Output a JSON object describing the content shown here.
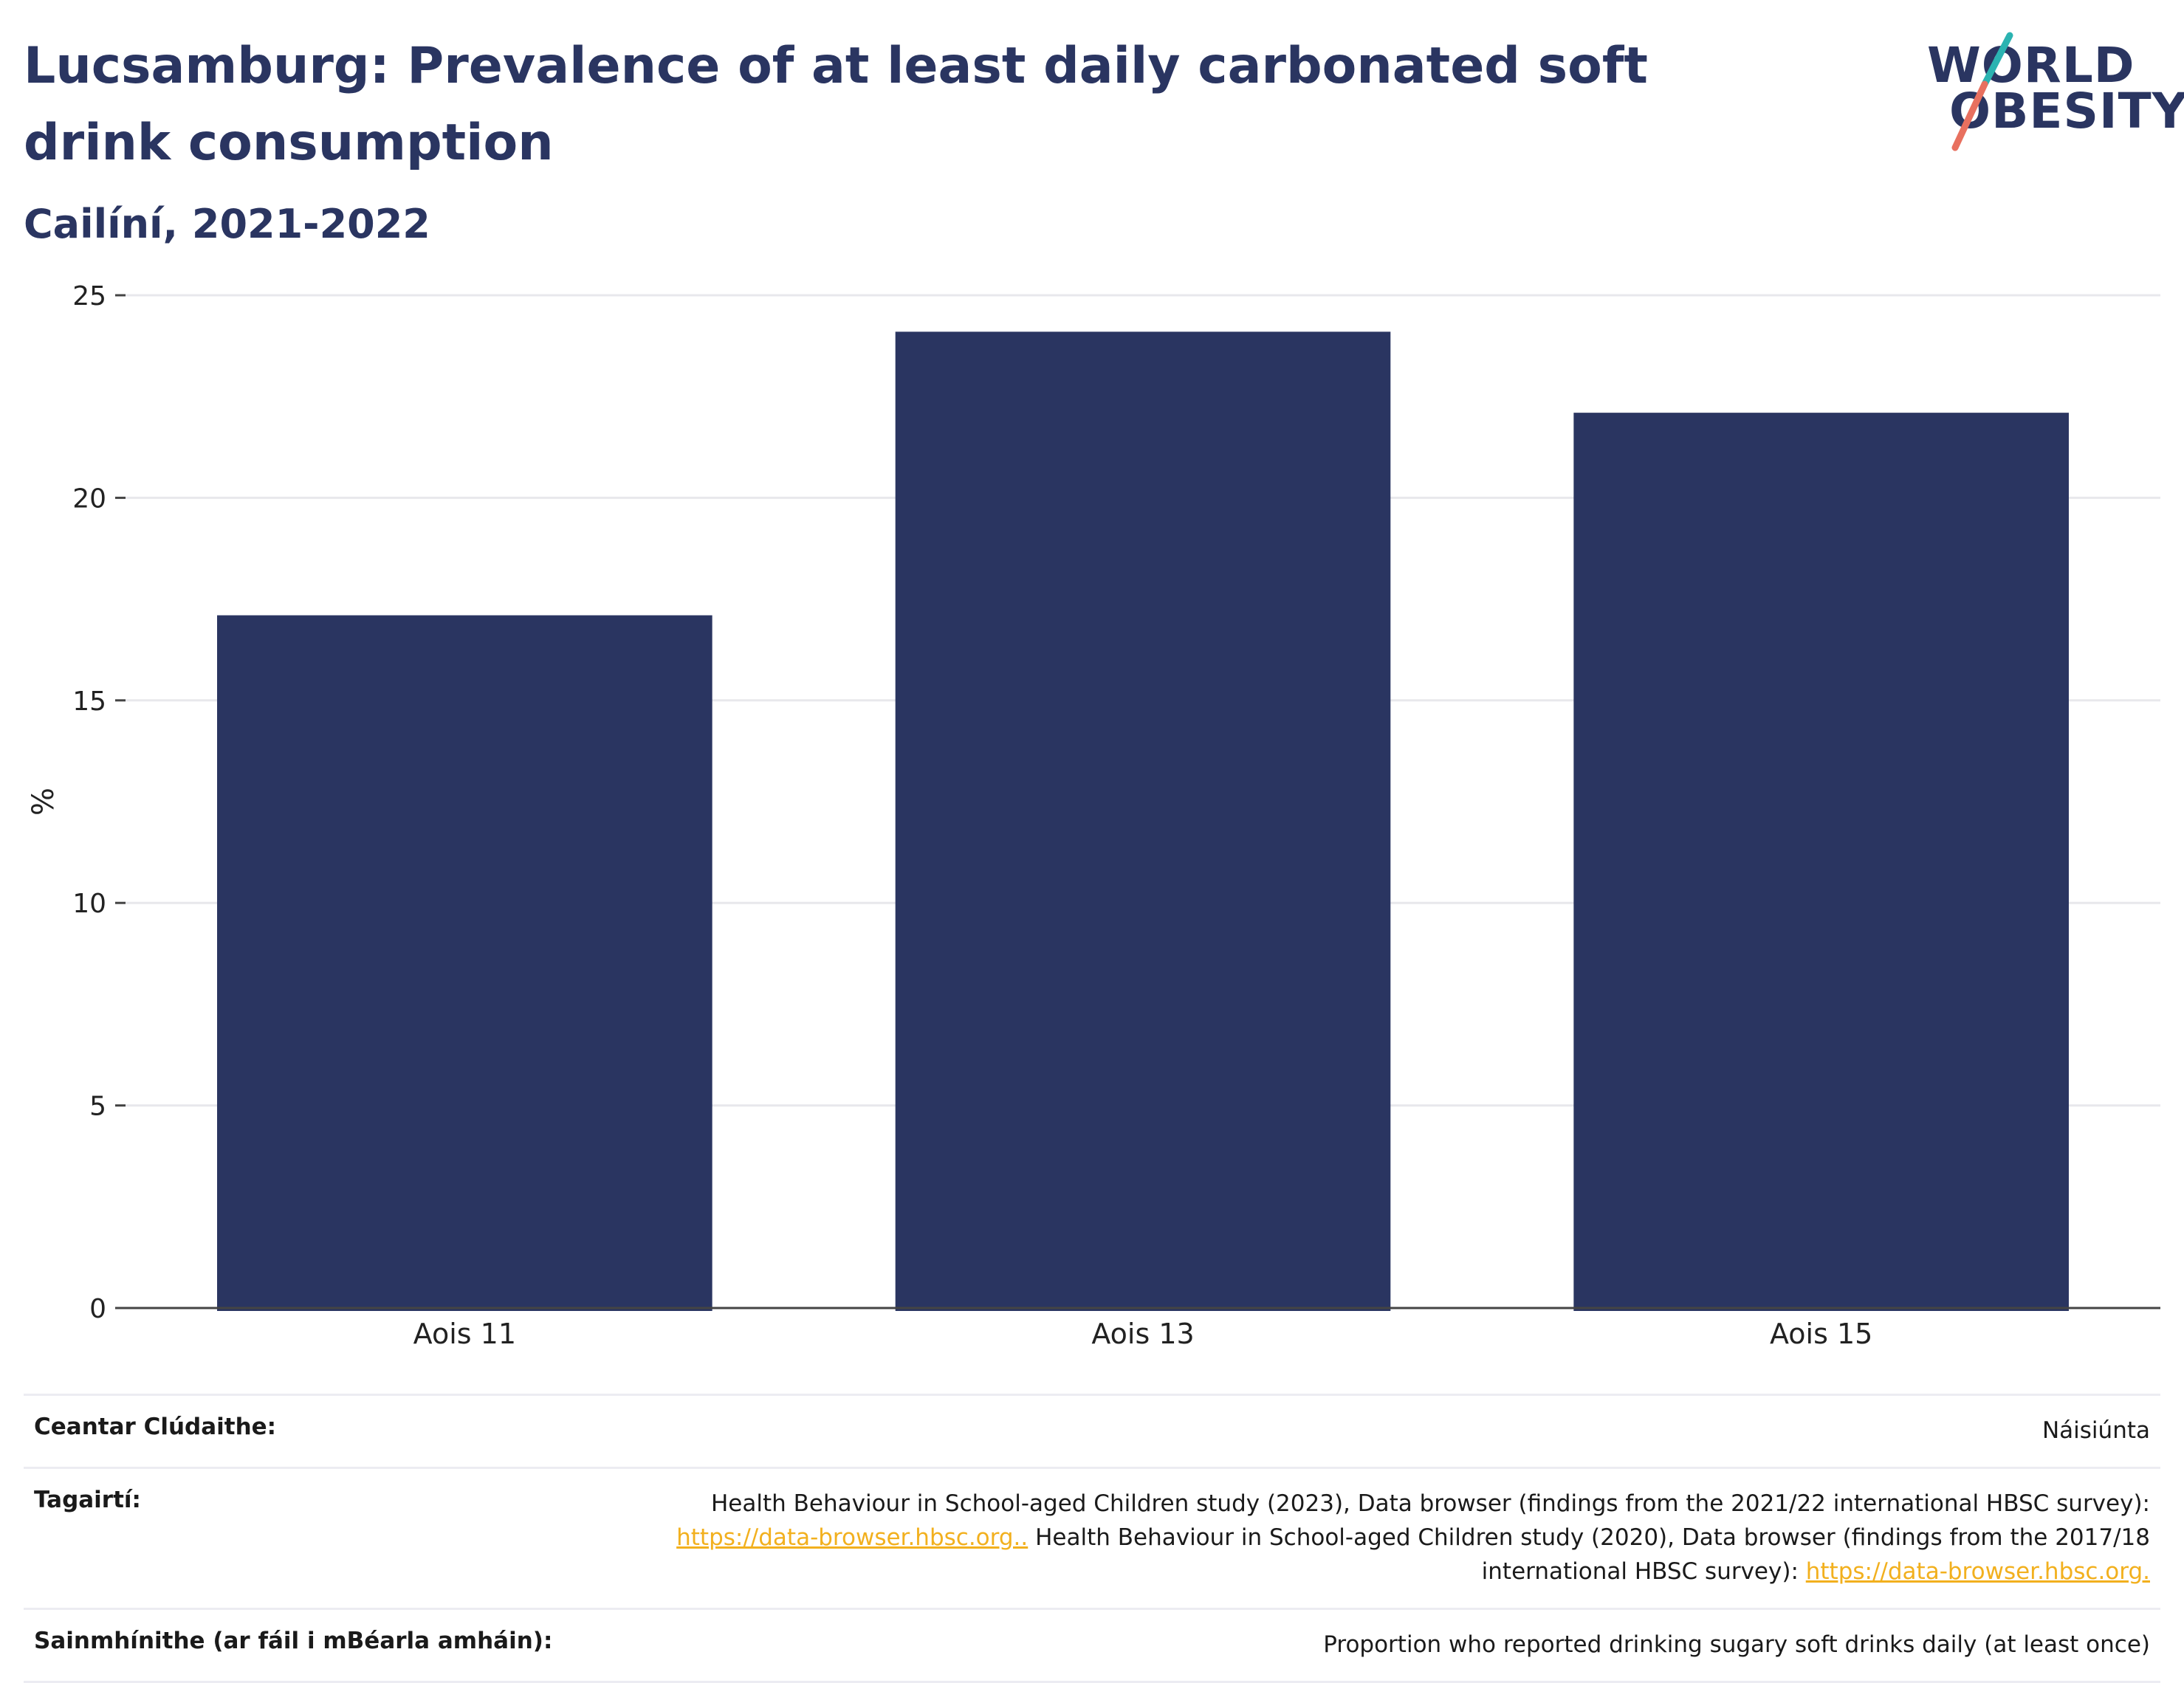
{
  "header": {
    "title": "Lucsamburg: Prevalence of at least daily carbonated soft drink consumption",
    "subtitle": "Cailíní, 2021-2022"
  },
  "logo": {
    "line1": "WORLD",
    "line2": "OBESITY",
    "colors": {
      "text": "#2a3561",
      "slash_top": "#2bb3b1",
      "slash_bottom": "#e8705f"
    }
  },
  "chart_data": {
    "type": "bar",
    "categories": [
      "Aois 11",
      "Aois 13",
      "Aois 15"
    ],
    "values": [
      17.1,
      24.1,
      22.1
    ],
    "ylabel": "%",
    "ylim": [
      0,
      25
    ],
    "yticks": [
      0,
      5,
      10,
      15,
      20,
      25
    ],
    "grid": true,
    "bar_color": "#2a3561"
  },
  "footer": {
    "coverage": {
      "label": "Ceantar Clúdaithe:",
      "value": "Náisiúnta"
    },
    "references": {
      "label": "Tagairtí:",
      "text1": "Health Behaviour in School-aged Children study (2023), Data browser (findings from the 2021/22 international HBSC survey):",
      "link1": "https://data-browser.hbsc.org..",
      "text2": " Health Behaviour in School-aged Children study (2020), Data browser (findings from the 2017/18 international HBSC survey): ",
      "link2": "https://data-browser.hbsc.org."
    },
    "definitions": {
      "label": "Sainmhínithe (ar fáil i mBéarla amháin):",
      "value": "Proportion who reported drinking sugary soft drinks daily (at least once)"
    },
    "link_color": "#f2b01e"
  }
}
